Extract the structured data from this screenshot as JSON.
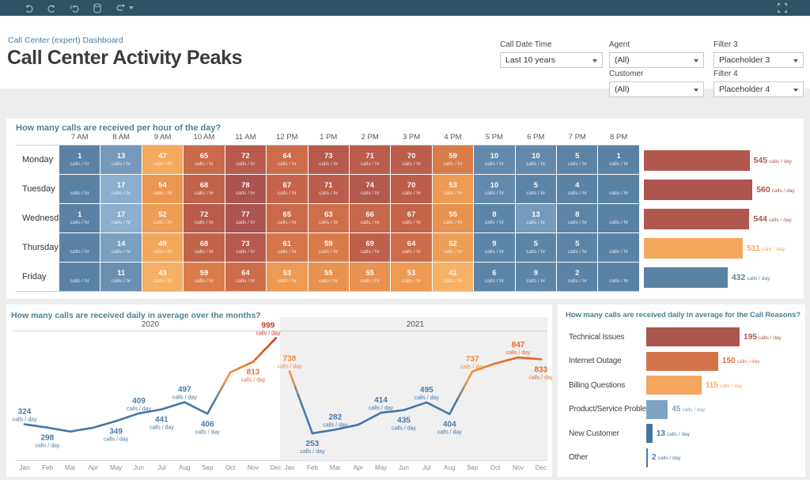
{
  "toolbar": {
    "icons": [
      "undo",
      "redo",
      "revert",
      "refresh-data-source",
      "share"
    ],
    "fullscreen": "toggle-fullscreen"
  },
  "header": {
    "breadcrumb": "Call Center (expert) Dashboard",
    "title": "Call Center Activity Peaks"
  },
  "filters": {
    "f1": {
      "label": "Call Date Time",
      "value": "Last 10 years"
    },
    "f2": {
      "label": "Agent",
      "value": "(All)"
    },
    "f3": {
      "label": "Filter 3",
      "value": "Placeholder 3"
    },
    "f4": {
      "label": "Customer",
      "value": "(All)"
    },
    "f5": {
      "label": "Filter 4",
      "value": "Placeholder 4"
    }
  },
  "chart_data": [
    {
      "type": "heatmap",
      "title": "How many calls are received per hour of the day?",
      "unit": "calls / hr",
      "columns": [
        "7 AM",
        "8 AM",
        "9 AM",
        "10 AM",
        "11 AM",
        "12 PM",
        "1 PM",
        "2 PM",
        "3 PM",
        "4 PM",
        "5 PM",
        "6 PM",
        "7 PM",
        "8 PM"
      ],
      "rows": [
        "Monday",
        "Tuesday",
        "Wednesday",
        "Thursday",
        "Friday"
      ],
      "values": [
        [
          1,
          13,
          47,
          65,
          72,
          64,
          73,
          71,
          70,
          59,
          10,
          10,
          5,
          1
        ],
        [
          null,
          17,
          54,
          68,
          78,
          67,
          71,
          74,
          70,
          53,
          10,
          5,
          4,
          null
        ],
        [
          1,
          17,
          52,
          72,
          77,
          65,
          63,
          66,
          67,
          55,
          8,
          13,
          8,
          null
        ],
        [
          null,
          14,
          49,
          68,
          73,
          61,
          59,
          69,
          64,
          52,
          9,
          5,
          5,
          null
        ],
        [
          null,
          11,
          43,
          59,
          64,
          53,
          55,
          55,
          53,
          41,
          6,
          9,
          2,
          null
        ]
      ],
      "color_scale": [
        [
          0,
          "#5a82a5"
        ],
        [
          9,
          "#5d85a8"
        ],
        [
          17,
          "#8cafcd"
        ],
        [
          28,
          "#c9d9e6"
        ],
        [
          41,
          "#f7b167"
        ],
        [
          49,
          "#f3a75a"
        ],
        [
          54,
          "#eb9751"
        ],
        [
          59,
          "#d97c4a"
        ],
        [
          64,
          "#cc6c4a"
        ],
        [
          70,
          "#bc5e4c"
        ],
        [
          78,
          "#aa534f"
        ]
      ],
      "row_totals": {
        "unit": "calls / day",
        "values": [
          545,
          560,
          544,
          511,
          432
        ],
        "colors": [
          "#b1584e",
          "#ad554e",
          "#b1584e",
          "#f4a85e",
          "#5a82a5"
        ]
      }
    },
    {
      "type": "line",
      "title": "How many calls are received daily in average over the months?",
      "unit": "calls / day",
      "months": [
        "Jan",
        "Feb",
        "Mar",
        "Apr",
        "May",
        "Jun",
        "Jul",
        "Aug",
        "Sep",
        "Oct",
        "Nov",
        "Dec"
      ],
      "ylim": [
        240,
        1020
      ],
      "panes": [
        {
          "year": "2020",
          "values": [
            324,
            298,
            267,
            297,
            349,
            409,
            441,
            497,
            406,
            730,
            813,
            999
          ],
          "label_sides": [
            "above",
            "below",
            null,
            null,
            "below",
            "above",
            "below",
            "above",
            "below",
            null,
            "below",
            "above-left"
          ]
        },
        {
          "year": "2021",
          "values": [
            738,
            253,
            282,
            320,
            414,
            435,
            495,
            404,
            737,
            800,
            847,
            833
          ],
          "label_sides": [
            "above",
            "below",
            "above",
            null,
            "above",
            "below",
            "above",
            "below",
            "above",
            null,
            "above",
            "below"
          ]
        }
      ],
      "color_scale": [
        [
          250,
          "#4a78a6"
        ],
        [
          500,
          "#4a78a6"
        ],
        [
          600,
          "#9a8a70"
        ],
        [
          680,
          "#ef9a44"
        ],
        [
          740,
          "#f08c38"
        ],
        [
          800,
          "#e97630"
        ],
        [
          860,
          "#e26028"
        ],
        [
          1000,
          "#c93d20"
        ]
      ]
    },
    {
      "type": "bar",
      "title": "How many calls are received daily in average for the Call Reasons?",
      "unit": "calls / day",
      "categories": [
        "Technical Issues",
        "Internet Outage",
        "Billing Questions",
        "Product/Service Problems",
        "New Customer",
        "Other"
      ],
      "values": [
        195,
        150,
        115,
        45,
        13,
        2
      ],
      "colors": [
        "#ab564e",
        "#d4744b",
        "#f3a75f",
        "#7ea3c4",
        "#47749e",
        "#4a78a6"
      ]
    }
  ]
}
